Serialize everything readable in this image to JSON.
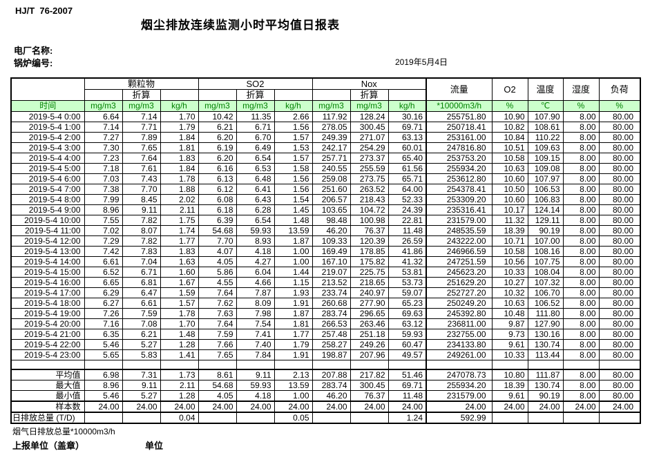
{
  "header": {
    "doc_code": "HJ/T  76-2007",
    "title": "烟尘排放连续监测小时平均值日报表",
    "plant_label": "电厂名称:",
    "boiler_label": "锅炉编号:",
    "date": "2019年5月4日"
  },
  "table": {
    "time_label": "时间",
    "converted_label": "折算",
    "group_labels": {
      "pm": "颗粒物",
      "so2": "SO2",
      "nox": "Nox",
      "flow": "流量",
      "o2": "O2",
      "temperature": "温度",
      "humidity": "湿度",
      "load": "负荷"
    },
    "units": [
      "mg/m3",
      "mg/m3",
      "kg/h",
      "mg/m3",
      "mg/m3",
      "kg/h",
      "mg/m3",
      "mg/m3",
      "kg/h",
      "*10000m3/h",
      "%",
      "℃",
      "%",
      "%"
    ],
    "rows": [
      {
        "time": "2019-5-4 0:00",
        "values": [
          "6.64",
          "7.14",
          "1.70",
          "10.42",
          "11.35",
          "2.66",
          "117.92",
          "128.24",
          "30.16",
          "255751.80",
          "10.90",
          "107.90",
          "8.00",
          "80.00"
        ]
      },
      {
        "time": "2019-5-4 1:00",
        "values": [
          "7.14",
          "7.71",
          "1.79",
          "6.21",
          "6.71",
          "1.56",
          "278.05",
          "300.45",
          "69.71",
          "250718.41",
          "10.82",
          "108.61",
          "8.00",
          "80.00"
        ]
      },
      {
        "time": "2019-5-4 2:00",
        "values": [
          "7.27",
          "7.89",
          "1.84",
          "6.20",
          "6.70",
          "1.57",
          "249.39",
          "271.07",
          "63.13",
          "253161.00",
          "10.84",
          "110.22",
          "8.00",
          "80.00"
        ]
      },
      {
        "time": "2019-5-4 3:00",
        "values": [
          "7.30",
          "7.65",
          "1.81",
          "6.19",
          "6.49",
          "1.53",
          "242.17",
          "254.29",
          "60.01",
          "247816.80",
          "10.51",
          "109.63",
          "8.00",
          "80.00"
        ]
      },
      {
        "time": "2019-5-4 4:00",
        "values": [
          "7.23",
          "7.64",
          "1.83",
          "6.20",
          "6.54",
          "1.57",
          "257.71",
          "273.37",
          "65.40",
          "253753.20",
          "10.58",
          "109.15",
          "8.00",
          "80.00"
        ]
      },
      {
        "time": "2019-5-4 5:00",
        "values": [
          "7.18",
          "7.61",
          "1.84",
          "6.16",
          "6.53",
          "1.58",
          "240.55",
          "255.59",
          "61.56",
          "255934.20",
          "10.63",
          "109.08",
          "8.00",
          "80.00"
        ]
      },
      {
        "time": "2019-5-4 6:00",
        "values": [
          "7.03",
          "7.43",
          "1.78",
          "6.13",
          "6.48",
          "1.56",
          "259.08",
          "273.75",
          "65.71",
          "253612.80",
          "10.60",
          "107.97",
          "8.00",
          "80.00"
        ]
      },
      {
        "time": "2019-5-4 7:00",
        "values": [
          "7.38",
          "7.70",
          "1.88",
          "6.12",
          "6.41",
          "1.56",
          "251.60",
          "263.52",
          "64.00",
          "254378.41",
          "10.50",
          "106.53",
          "8.00",
          "80.00"
        ]
      },
      {
        "time": "2019-5-4 8:00",
        "values": [
          "7.99",
          "8.45",
          "2.02",
          "6.08",
          "6.43",
          "1.54",
          "206.57",
          "218.43",
          "52.33",
          "253309.20",
          "10.60",
          "106.83",
          "8.00",
          "80.00"
        ]
      },
      {
        "time": "2019-5-4 9:00",
        "values": [
          "8.96",
          "9.11",
          "2.11",
          "6.18",
          "6.28",
          "1.45",
          "103.65",
          "104.72",
          "24.39",
          "235316.41",
          "10.17",
          "124.14",
          "8.00",
          "80.00"
        ]
      },
      {
        "time": "2019-5-4 10:00",
        "values": [
          "7.55",
          "7.82",
          "1.75",
          "6.39",
          "6.54",
          "1.48",
          "98.48",
          "100.98",
          "22.81",
          "231579.00",
          "11.32",
          "129.11",
          "8.00",
          "80.00"
        ]
      },
      {
        "time": "2019-5-4 11:00",
        "values": [
          "7.02",
          "8.07",
          "1.74",
          "54.68",
          "59.93",
          "13.59",
          "46.20",
          "76.37",
          "11.48",
          "248535.59",
          "18.39",
          "90.19",
          "8.00",
          "80.00"
        ]
      },
      {
        "time": "2019-5-4 12:00",
        "values": [
          "7.29",
          "7.82",
          "1.77",
          "7.70",
          "8.93",
          "1.87",
          "109.33",
          "120.39",
          "26.59",
          "243222.00",
          "10.71",
          "107.00",
          "8.00",
          "80.00"
        ]
      },
      {
        "time": "2019-5-4 13:00",
        "values": [
          "7.42",
          "7.83",
          "1.83",
          "4.07",
          "4.18",
          "1.00",
          "169.49",
          "178.85",
          "41.86",
          "246966.59",
          "10.58",
          "108.16",
          "8.00",
          "80.00"
        ]
      },
      {
        "time": "2019-5-4 14:00",
        "values": [
          "6.61",
          "7.04",
          "1.63",
          "4.05",
          "4.27",
          "1.00",
          "167.10",
          "175.82",
          "41.32",
          "247251.59",
          "10.56",
          "107.75",
          "8.00",
          "80.00"
        ]
      },
      {
        "time": "2019-5-4 15:00",
        "values": [
          "6.52",
          "6.71",
          "1.60",
          "5.86",
          "6.04",
          "1.44",
          "219.07",
          "225.75",
          "53.81",
          "245623.20",
          "10.33",
          "108.04",
          "8.00",
          "80.00"
        ]
      },
      {
        "time": "2019-5-4 16:00",
        "values": [
          "6.65",
          "6.81",
          "1.67",
          "4.55",
          "4.66",
          "1.15",
          "213.52",
          "218.65",
          "53.73",
          "251629.20",
          "10.27",
          "107.32",
          "8.00",
          "80.00"
        ]
      },
      {
        "time": "2019-5-4 17:00",
        "values": [
          "6.29",
          "6.47",
          "1.59",
          "7.64",
          "7.87",
          "1.93",
          "233.74",
          "240.97",
          "59.07",
          "252727.20",
          "10.32",
          "106.70",
          "8.00",
          "80.00"
        ]
      },
      {
        "time": "2019-5-4 18:00",
        "values": [
          "6.27",
          "6.61",
          "1.57",
          "7.62",
          "8.09",
          "1.91",
          "260.68",
          "277.90",
          "65.23",
          "250249.20",
          "10.63",
          "106.52",
          "8.00",
          "80.00"
        ]
      },
      {
        "time": "2019-5-4 19:00",
        "values": [
          "7.26",
          "7.59",
          "1.78",
          "7.63",
          "7.98",
          "1.87",
          "283.74",
          "296.65",
          "69.63",
          "245392.80",
          "10.48",
          "111.80",
          "8.00",
          "80.00"
        ]
      },
      {
        "time": "2019-5-4 20:00",
        "values": [
          "7.16",
          "7.08",
          "1.70",
          "7.64",
          "7.54",
          "1.81",
          "266.53",
          "263.46",
          "63.12",
          "236811.00",
          "9.87",
          "127.90",
          "8.00",
          "80.00"
        ]
      },
      {
        "time": "2019-5-4 21:00",
        "values": [
          "6.35",
          "6.21",
          "1.48",
          "7.59",
          "7.41",
          "1.77",
          "257.48",
          "251.18",
          "59.93",
          "232755.00",
          "9.73",
          "130.16",
          "8.00",
          "80.00"
        ]
      },
      {
        "time": "2019-5-4 22:00",
        "values": [
          "5.46",
          "5.27",
          "1.28",
          "7.66",
          "7.40",
          "1.79",
          "258.27",
          "249.26",
          "60.47",
          "234133.80",
          "9.61",
          "130.74",
          "8.00",
          "80.00"
        ]
      },
      {
        "time": "2019-5-4 23:00",
        "values": [
          "5.65",
          "5.83",
          "1.41",
          "7.65",
          "7.84",
          "1.91",
          "198.87",
          "207.96",
          "49.57",
          "249261.00",
          "10.33",
          "113.44",
          "8.00",
          "80.00"
        ]
      }
    ],
    "summary": [
      {
        "label": "平均值",
        "values": [
          "6.98",
          "7.31",
          "1.73",
          "8.61",
          "9.11",
          "2.13",
          "207.88",
          "217.82",
          "51.46",
          "247078.73",
          "10.80",
          "111.87",
          "8.00",
          "80.00"
        ]
      },
      {
        "label": "最大值",
        "values": [
          "8.96",
          "9.11",
          "2.11",
          "54.68",
          "59.93",
          "13.59",
          "283.74",
          "300.45",
          "69.71",
          "255934.20",
          "18.39",
          "130.74",
          "8.00",
          "80.00"
        ]
      },
      {
        "label": "最小值",
        "values": [
          "5.46",
          "5.27",
          "1.28",
          "4.05",
          "4.18",
          "1.00",
          "46.20",
          "76.37",
          "11.48",
          "231579.00",
          "9.61",
          "90.19",
          "8.00",
          "80.00"
        ]
      },
      {
        "label": "样本数",
        "values": [
          "24.00",
          "24.00",
          "24.00",
          "24.00",
          "24.00",
          "24.00",
          "24.00",
          "24.00",
          "24.00",
          "24.00",
          "24.00",
          "24.00",
          "24.00",
          "24.00"
        ]
      },
      {
        "label": "日排放总量 (T/D)",
        "values": [
          "",
          "",
          "0.04",
          "",
          "",
          "0.05",
          "",
          "",
          "1.24",
          "592.99",
          "",
          "",
          "",
          ""
        ]
      }
    ]
  },
  "footer": {
    "flue_gas_note": "烟气日排放总量*10000m3/h",
    "report_unit_label": "上报单位（盖章）",
    "unit_label": "单位"
  }
}
